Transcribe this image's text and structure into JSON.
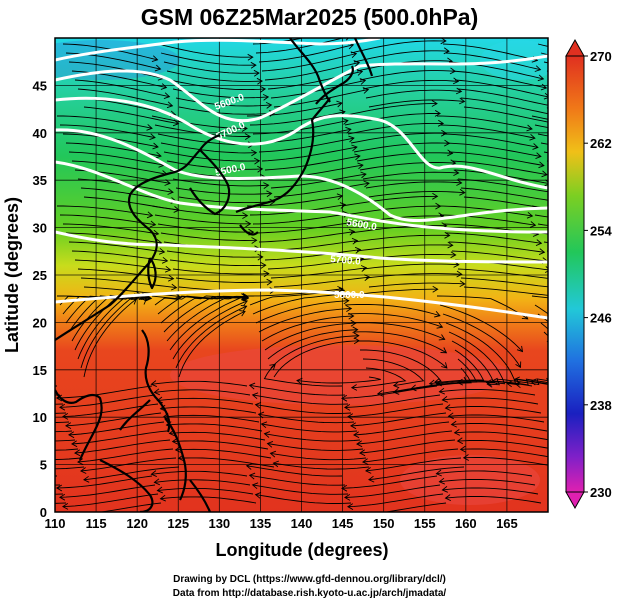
{
  "title": "GSM 06Z25Mar2025 (500.0hPa)",
  "xlabel": "Longitude (degrees)",
  "ylabel": "Latitude  (degrees)",
  "credits": [
    "Drawing by DCL (https://www.gfd-dennou.org/library/dcl/)",
    "Data from http://database.rish.kyoto-u.ac.jp/arch/jmadata/"
  ],
  "map": {
    "lon_range": [
      110,
      170
    ],
    "lat_range": [
      0,
      50
    ],
    "lon_ticks": [
      110,
      115,
      120,
      125,
      130,
      135,
      140,
      145,
      150,
      155,
      160,
      165
    ],
    "lat_ticks": [
      0,
      5,
      10,
      15,
      20,
      25,
      30,
      35,
      40,
      45
    ],
    "colorbar": {
      "min": 230,
      "max": 270,
      "tick_labels": [
        "270",
        "262",
        "254",
        "246",
        "238",
        "230"
      ]
    },
    "contour_labels": [
      "5600.0",
      "5700.0",
      "5500.0",
      "5600.0",
      "5700.0",
      "5800.0"
    ],
    "colors": {
      "warm": "#e83a2a",
      "cool": "#2ad8e8",
      "contour": "#ffffff",
      "coast": "#000000"
    }
  }
}
